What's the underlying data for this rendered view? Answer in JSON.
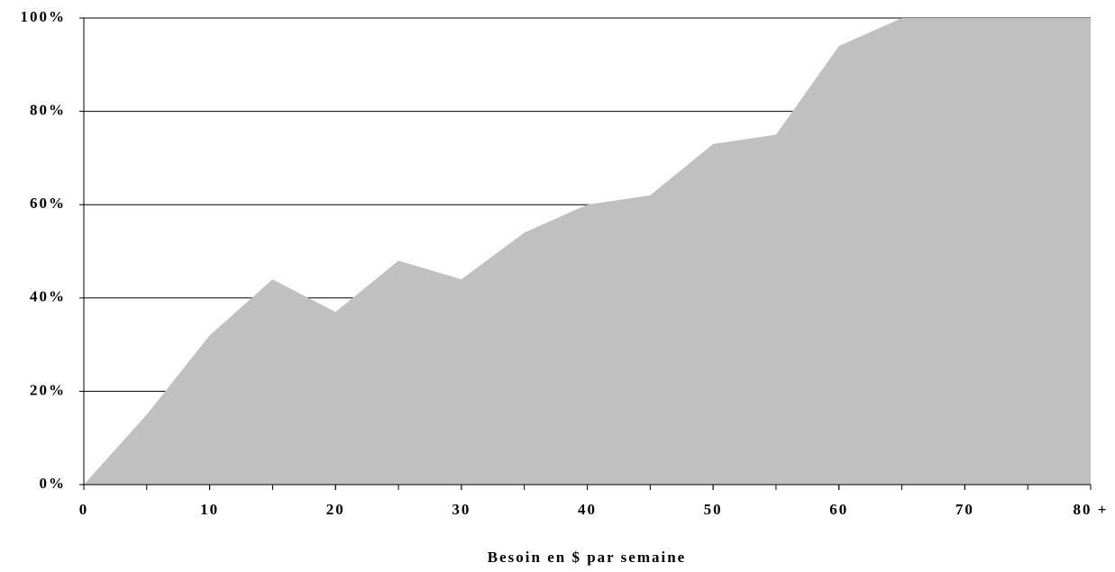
{
  "chart_data": {
    "type": "area",
    "x_label": "Besoin en $ par semaine",
    "x": [
      0,
      5,
      10,
      15,
      20,
      25,
      30,
      35,
      40,
      45,
      50,
      55,
      60,
      65,
      70,
      75,
      80
    ],
    "values": [
      0,
      15,
      32,
      44,
      37,
      48,
      44,
      54,
      60,
      62,
      73,
      75,
      94,
      100,
      100,
      100,
      100
    ],
    "color": "#c0c0c0",
    "xlim": [
      0,
      80
    ],
    "xticks": [
      0,
      10,
      20,
      30,
      40,
      50,
      60,
      70,
      {
        "value": 80,
        "label": "80 +"
      }
    ],
    "ylim": [
      0,
      100
    ],
    "yticks": [
      {
        "value": 0,
        "label": "0%"
      },
      {
        "value": 20,
        "label": "20%"
      },
      {
        "value": 40,
        "label": "40%"
      },
      {
        "value": 60,
        "label": "60%"
      },
      {
        "value": 80,
        "label": "80%"
      },
      {
        "value": 100,
        "label": "100%"
      }
    ],
    "grid": true
  }
}
